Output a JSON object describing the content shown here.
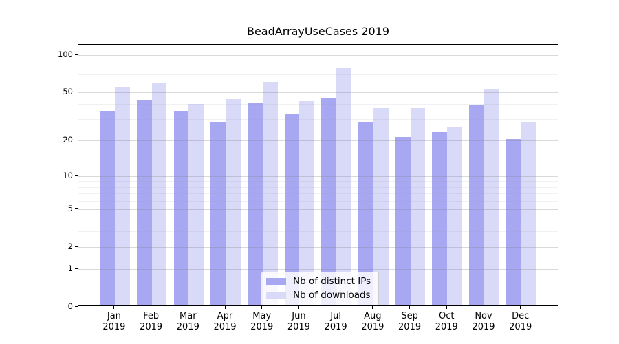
{
  "chart_data": {
    "type": "bar",
    "title": "BeadArrayUseCases 2019",
    "x_categories": [
      "Jan",
      "Feb",
      "Mar",
      "Apr",
      "May",
      "Jun",
      "Jul",
      "Aug",
      "Sep",
      "Oct",
      "Nov",
      "Dec"
    ],
    "x_year_label": "2019",
    "series": [
      {
        "name": "Nb of distinct IPs",
        "color": "#a8a8f2",
        "values": [
          34,
          42,
          34,
          28,
          40,
          32,
          44,
          28,
          21,
          23,
          38,
          20
        ]
      },
      {
        "name": "Nb of downloads",
        "color": "#d9d9f8",
        "values": [
          53,
          58,
          39,
          43,
          59,
          41,
          76,
          36,
          36,
          25,
          52,
          28
        ]
      }
    ],
    "y_scale": "log10(1+x)",
    "y_major_ticks": [
      0,
      1,
      2,
      5,
      10,
      20,
      50,
      100
    ],
    "y_minor_gridlines": [
      3,
      4,
      6,
      7,
      8,
      9,
      30,
      40,
      60,
      70,
      80,
      90
    ],
    "ylim": [
      0,
      120
    ],
    "grid": true,
    "legend_position": "lower center"
  }
}
